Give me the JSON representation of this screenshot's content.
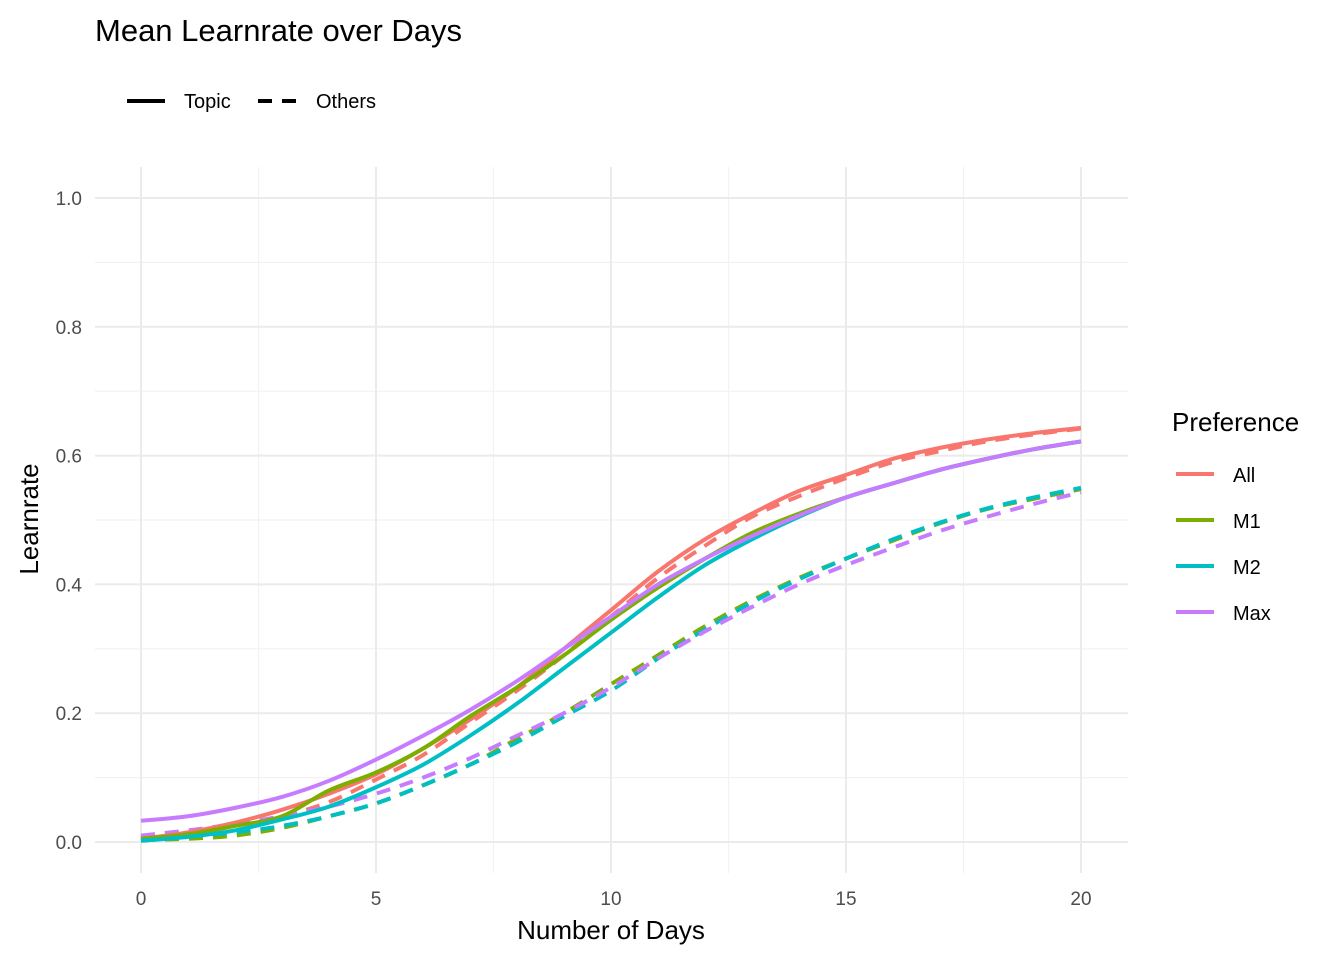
{
  "chart_data": {
    "type": "line",
    "title": "Mean Learnrate over Days",
    "xlabel": "Number of Days",
    "ylabel": "Learnrate",
    "xlim": [
      0,
      20
    ],
    "ylim": [
      0,
      1
    ],
    "x_ticks": [
      "0",
      "5",
      "10",
      "15",
      "20"
    ],
    "y_ticks": [
      "0.0",
      "0.2",
      "0.4",
      "0.6",
      "0.8",
      "1.0"
    ],
    "grid": true,
    "linetype_legend": {
      "position": "top-left",
      "items": [
        {
          "label": "Topic",
          "dash": "solid"
        },
        {
          "label": "Others",
          "dash": "dashed"
        }
      ]
    },
    "color_legend": {
      "title": "Preference",
      "position": "right",
      "items": [
        {
          "label": "All",
          "color": "#F8766D"
        },
        {
          "label": "M1",
          "color": "#7CAE00"
        },
        {
          "label": "M2",
          "color": "#00BFC4"
        },
        {
          "label": "Max",
          "color": "#C77CFF"
        }
      ]
    },
    "x": [
      0,
      1,
      2,
      3,
      4,
      5,
      6,
      7,
      8,
      9,
      10,
      11,
      12,
      13,
      14,
      15,
      16,
      17,
      18,
      19,
      20
    ],
    "series": [
      {
        "name": "All",
        "linetype": "Topic",
        "color": "#F8766D",
        "values": [
          0.005,
          0.015,
          0.03,
          0.05,
          0.075,
          0.105,
          0.145,
          0.19,
          0.24,
          0.3,
          0.36,
          0.42,
          0.47,
          0.51,
          0.545,
          0.57,
          0.595,
          0.612,
          0.625,
          0.635,
          0.643
        ]
      },
      {
        "name": "All",
        "linetype": "Others",
        "color": "#F8766D",
        "values": [
          0.005,
          0.012,
          0.025,
          0.04,
          0.062,
          0.097,
          0.135,
          0.185,
          0.235,
          0.29,
          0.35,
          0.41,
          0.46,
          0.505,
          0.537,
          0.565,
          0.59,
          0.607,
          0.622,
          0.633,
          0.642
        ]
      },
      {
        "name": "M1",
        "linetype": "Topic",
        "color": "#7CAE00",
        "values": [
          0.005,
          0.012,
          0.025,
          0.04,
          0.08,
          0.108,
          0.145,
          0.195,
          0.24,
          0.29,
          0.345,
          0.395,
          0.44,
          0.48,
          0.51,
          0.535,
          0.557,
          0.578,
          0.595,
          0.61,
          0.622
        ]
      },
      {
        "name": "M1",
        "linetype": "Others",
        "color": "#7CAE00",
        "values": [
          0.003,
          0.005,
          0.01,
          0.022,
          0.04,
          0.06,
          0.088,
          0.12,
          0.16,
          0.2,
          0.245,
          0.29,
          0.335,
          0.375,
          0.41,
          0.44,
          0.468,
          0.495,
          0.517,
          0.533,
          0.548
        ]
      },
      {
        "name": "M2",
        "linetype": "Topic",
        "color": "#00BFC4",
        "values": [
          0.002,
          0.008,
          0.018,
          0.035,
          0.055,
          0.085,
          0.12,
          0.165,
          0.215,
          0.27,
          0.325,
          0.38,
          0.43,
          0.47,
          0.505,
          0.535,
          0.557,
          0.578,
          0.595,
          0.61,
          0.622
        ]
      },
      {
        "name": "M2",
        "linetype": "Others",
        "color": "#00BFC4",
        "values": [
          0.002,
          0.008,
          0.015,
          0.025,
          0.04,
          0.06,
          0.088,
          0.12,
          0.155,
          0.195,
          0.235,
          0.285,
          0.33,
          0.372,
          0.408,
          0.44,
          0.47,
          0.496,
          0.518,
          0.535,
          0.55
        ]
      },
      {
        "name": "Max",
        "linetype": "Topic",
        "color": "#C77CFF",
        "values": [
          0.033,
          0.04,
          0.053,
          0.07,
          0.095,
          0.128,
          0.165,
          0.205,
          0.25,
          0.3,
          0.35,
          0.4,
          0.44,
          0.475,
          0.507,
          0.535,
          0.557,
          0.578,
          0.595,
          0.61,
          0.622
        ]
      },
      {
        "name": "Max",
        "linetype": "Others",
        "color": "#C77CFF",
        "values": [
          0.01,
          0.018,
          0.028,
          0.04,
          0.055,
          0.075,
          0.1,
          0.13,
          0.165,
          0.2,
          0.24,
          0.285,
          0.327,
          0.365,
          0.4,
          0.43,
          0.457,
          0.483,
          0.505,
          0.525,
          0.543
        ]
      }
    ]
  }
}
